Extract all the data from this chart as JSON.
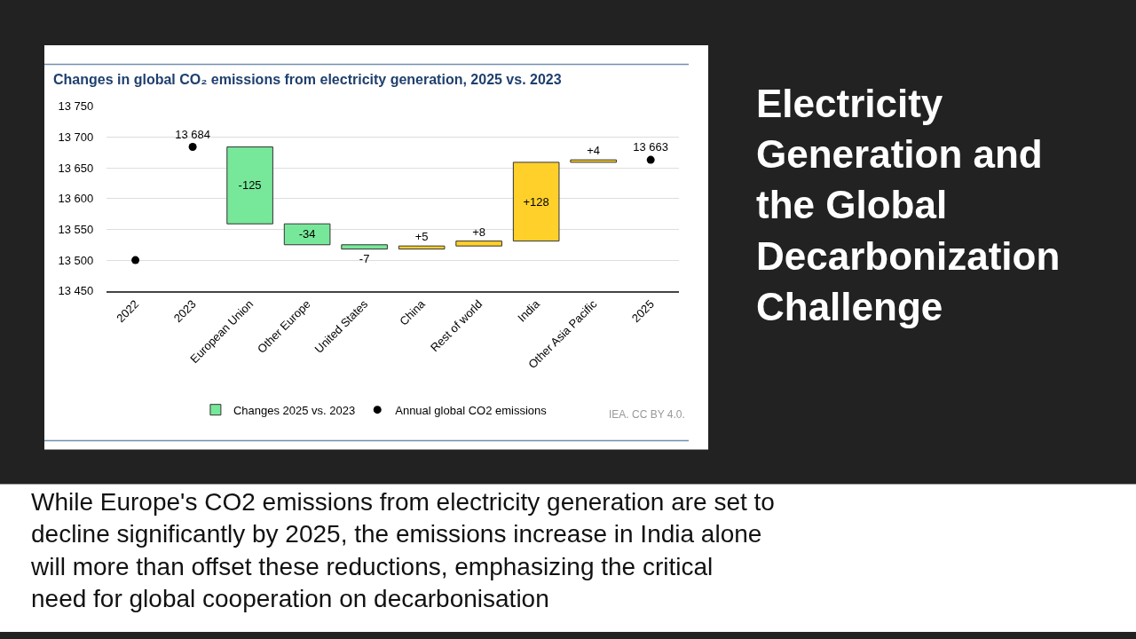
{
  "chart_data": {
    "type": "bar",
    "title": "Changes in global CO₂ emissions from electricity generation, 2025 vs. 2023",
    "categories": [
      "2022",
      "2023",
      "European Union",
      "Other Europe",
      "United States",
      "China",
      "Rest of world",
      "India",
      "Other Asia Pacific",
      "2025"
    ],
    "series": [
      {
        "name": "Changes 2025 vs. 2023",
        "base": [
          null,
          null,
          13684,
          13559,
          13525,
          13518,
          13523,
          13531,
          13659,
          null
        ],
        "values": [
          null,
          null,
          -125,
          -34,
          -7,
          5,
          8,
          128,
          4,
          null
        ],
        "colors": [
          "#77e89a",
          "#77e89a",
          "#77e89a",
          "#77e89a",
          "#77e89a",
          "#ffd02a",
          "#ffd02a",
          "#ffd02a",
          "#ffd02a",
          "#ffd02a"
        ],
        "value_labels": [
          null,
          null,
          "-125",
          "-34",
          "-7",
          "+5",
          "+8",
          "+128",
          "+4",
          null
        ]
      },
      {
        "name": "Annual global CO2 emissions",
        "type": "scatter",
        "values": [
          13500,
          13684,
          null,
          null,
          null,
          null,
          null,
          null,
          null,
          13663
        ],
        "color": "#000000",
        "value_labels": [
          null,
          "13 684",
          null,
          null,
          null,
          null,
          null,
          null,
          null,
          "13 663"
        ]
      }
    ],
    "ylim": [
      13450,
      13750
    ],
    "yticks": [
      {
        "value": 13450,
        "label": "13 450"
      },
      {
        "value": 13500,
        "label": "13 500"
      },
      {
        "value": 13550,
        "label": "13 550"
      },
      {
        "value": 13600,
        "label": "13 600"
      },
      {
        "value": 13650,
        "label": "13 650"
      },
      {
        "value": 13700,
        "label": "13 700"
      },
      {
        "value": 13750,
        "label": "13 750"
      }
    ],
    "grid": "y",
    "legend": "bottom",
    "marker": "circle",
    "annotations": [
      "IEA. CC BY 4.0.",
      "Electricity Generation and the Global Decarbonization Challenge",
      "While Europe's CO2 emissions from electricity generation are set to decline significantly by 2025, the emissions increase in India alone will more than offset these reductions, emphasizing the critical need for global cooperation on decarbonisation"
    ]
  }
}
